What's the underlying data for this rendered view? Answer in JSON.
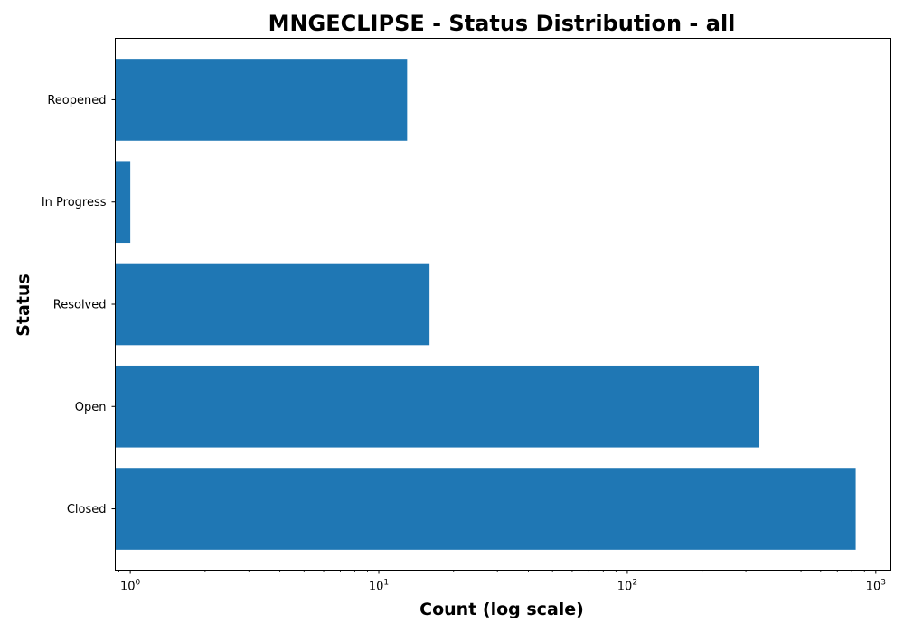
{
  "chart_data": {
    "type": "bar",
    "orientation": "horizontal",
    "title": "MNGECLIPSE - Status Distribution - all",
    "xlabel": "Count (log scale)",
    "ylabel": "Status",
    "x_scale": "log",
    "xlim": [
      0.87,
      1150
    ],
    "x_ticks": [
      {
        "base": "10",
        "exp": "0",
        "value": 1
      },
      {
        "base": "10",
        "exp": "1",
        "value": 10
      },
      {
        "base": "10",
        "exp": "2",
        "value": 100
      },
      {
        "base": "10",
        "exp": "3",
        "value": 1000
      }
    ],
    "categories": [
      "Closed",
      "Open",
      "Resolved",
      "In Progress",
      "Reopened"
    ],
    "values": [
      830,
      340,
      16,
      1,
      13
    ],
    "bar_color": "#1f77b4",
    "grid": false,
    "legend": "none"
  }
}
